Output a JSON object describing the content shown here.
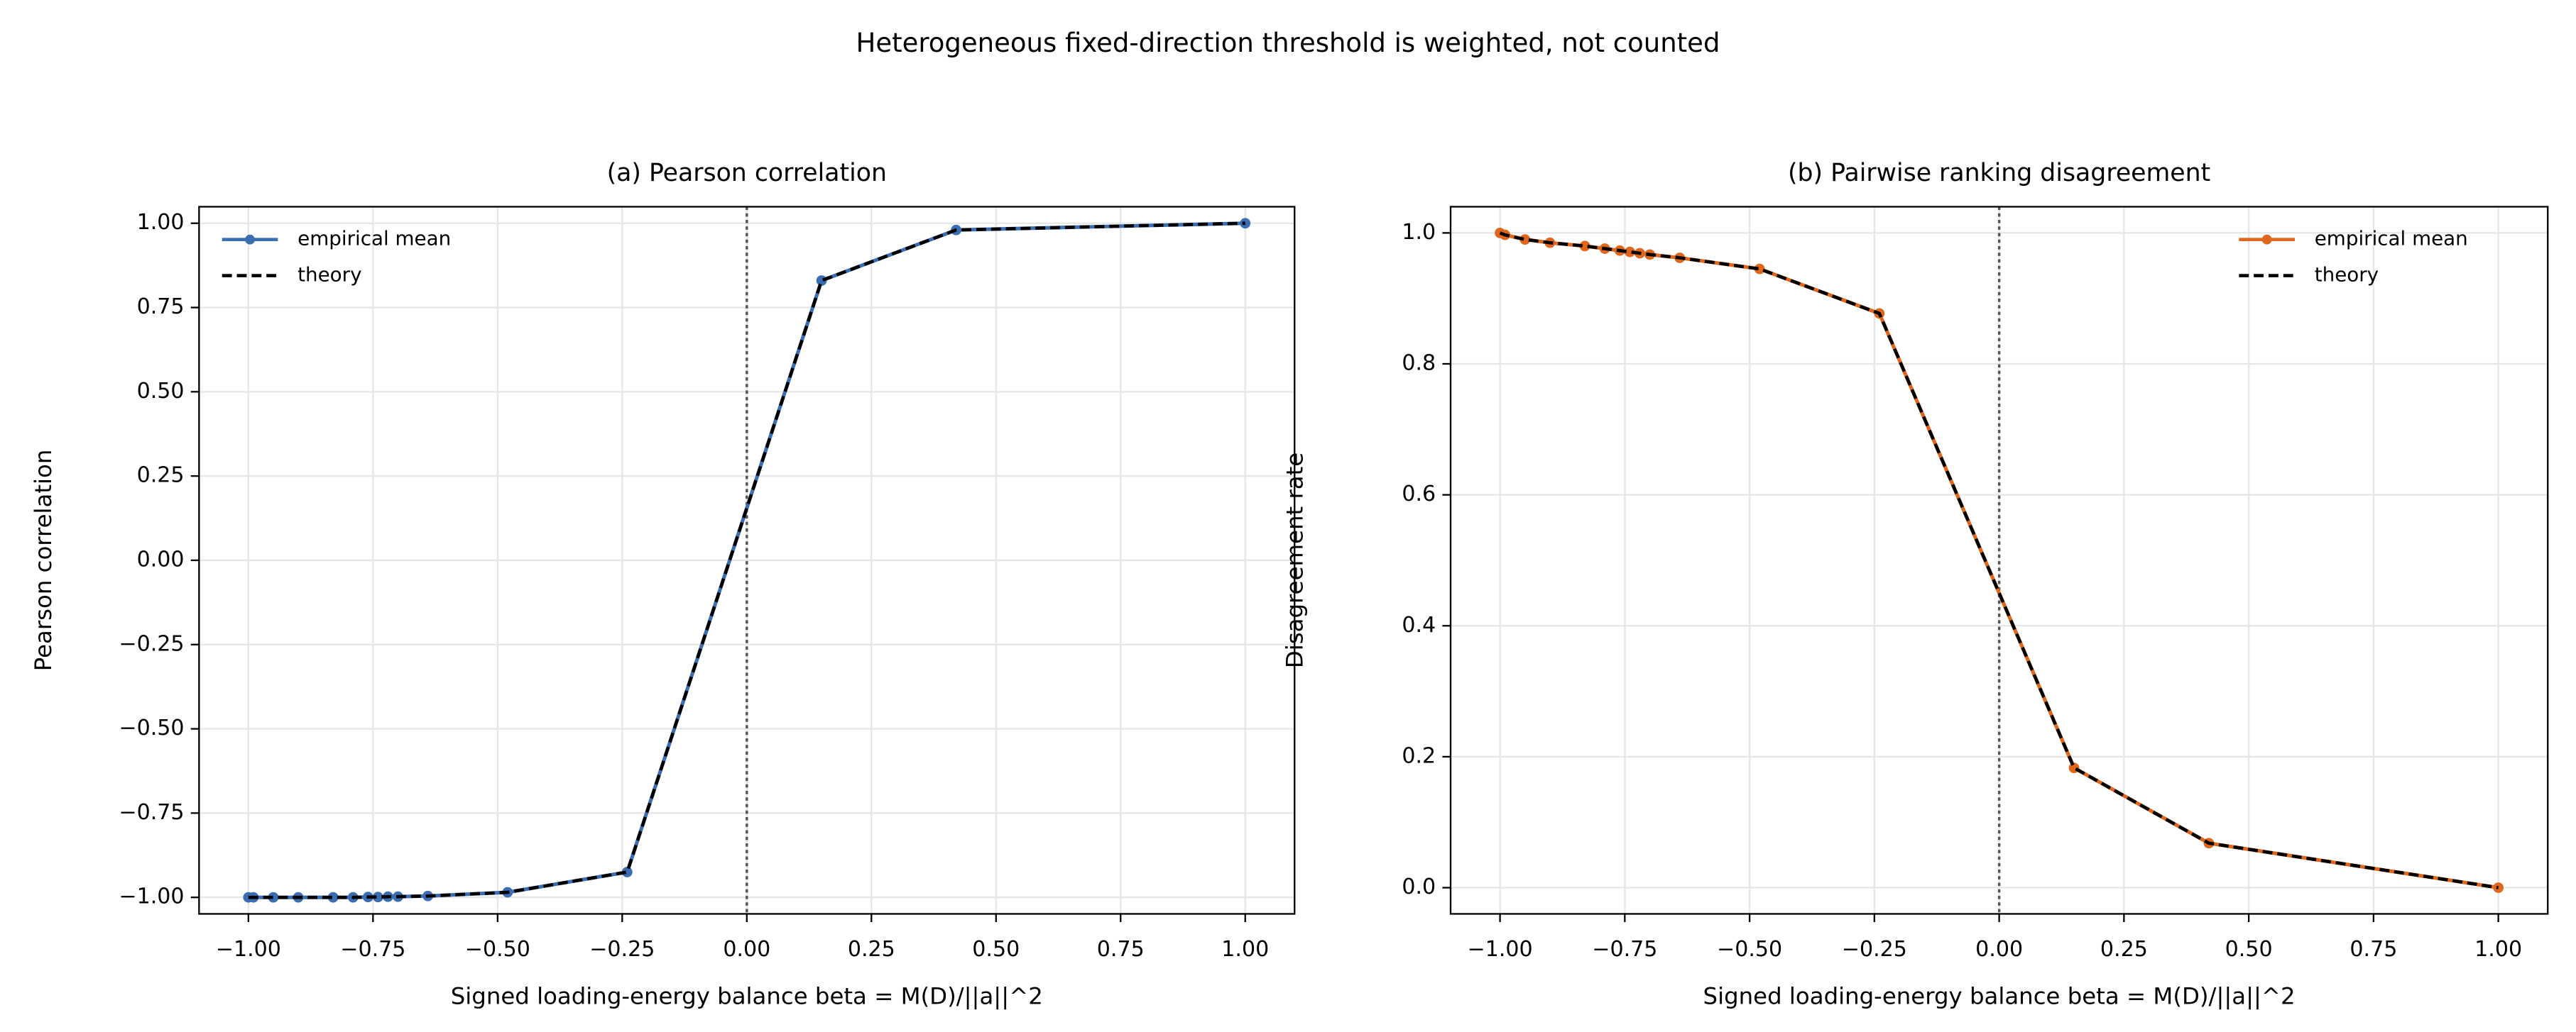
{
  "title": "Heterogeneous fixed-direction threshold is weighted, not counted",
  "chart_data": [
    {
      "type": "line",
      "title": "(a) Pearson correlation",
      "xlabel": "Signed loading-energy balance beta = M(D)/||a||^2",
      "ylabel": "Pearson correlation",
      "x": [
        -1.0,
        -0.99,
        -0.95,
        -0.9,
        -0.83,
        -0.79,
        -0.76,
        -0.74,
        -0.72,
        -0.7,
        -0.64,
        -0.48,
        -0.24,
        0.15,
        0.42,
        1.0
      ],
      "series": [
        {
          "name": "empirical mean",
          "color": "#3b6db3",
          "marker": true,
          "dash": false,
          "values": [
            -1.0,
            -1.0,
            -1.0,
            -1.0,
            -1.0,
            -1.0,
            -0.999,
            -0.999,
            -0.998,
            -0.998,
            -0.996,
            -0.985,
            -0.925,
            0.83,
            0.98,
            1.0
          ]
        },
        {
          "name": "theory",
          "color": "#000000",
          "marker": false,
          "dash": true,
          "values": [
            -1.0,
            -1.0,
            -1.0,
            -1.0,
            -1.0,
            -1.0,
            -0.999,
            -0.999,
            -0.998,
            -0.998,
            -0.996,
            -0.985,
            -0.925,
            0.83,
            0.98,
            1.0
          ]
        }
      ],
      "xlim": [
        -1.099,
        1.099
      ],
      "ylim": [
        -1.049,
        1.049
      ],
      "xticks": [
        {
          "value": -1,
          "label": "−1.00"
        },
        {
          "value": -0.75,
          "label": "−0.75"
        },
        {
          "value": -0.5,
          "label": "−0.50"
        },
        {
          "value": -0.25,
          "label": "−0.25"
        },
        {
          "value": 0,
          "label": "0.00"
        },
        {
          "value": 0.25,
          "label": "0.25"
        },
        {
          "value": 0.5,
          "label": "0.50"
        },
        {
          "value": 0.75,
          "label": "0.75"
        },
        {
          "value": 1,
          "label": "1.00"
        }
      ],
      "yticks": [
        {
          "value": -1,
          "label": "−1.00"
        },
        {
          "value": -0.75,
          "label": "−0.75"
        },
        {
          "value": -0.5,
          "label": "−0.50"
        },
        {
          "value": -0.25,
          "label": "−0.25"
        },
        {
          "value": 0,
          "label": "0.00"
        },
        {
          "value": 0.25,
          "label": "0.25"
        },
        {
          "value": 0.5,
          "label": "0.50"
        },
        {
          "value": 0.75,
          "label": "0.75"
        },
        {
          "value": 1,
          "label": "1.00"
        }
      ],
      "reference_x": 0,
      "grid": true,
      "legend": "upper left"
    },
    {
      "type": "line",
      "title": "(b) Pairwise ranking disagreement",
      "xlabel": "Signed loading-energy balance beta = M(D)/||a||^2",
      "ylabel": "Disagreement rate",
      "x": [
        -1.0,
        -0.99,
        -0.95,
        -0.9,
        -0.83,
        -0.79,
        -0.76,
        -0.74,
        -0.72,
        -0.7,
        -0.64,
        -0.48,
        -0.24,
        0.15,
        0.42,
        1.0
      ],
      "series": [
        {
          "name": "empirical mean",
          "color": "#e0661c",
          "marker": true,
          "dash": false,
          "values": [
            1.0,
            0.997,
            0.99,
            0.985,
            0.98,
            0.976,
            0.973,
            0.971,
            0.969,
            0.967,
            0.962,
            0.945,
            0.877,
            0.183,
            0.068,
            0.0
          ]
        },
        {
          "name": "theory",
          "color": "#000000",
          "marker": false,
          "dash": true,
          "values": [
            1.0,
            0.997,
            0.99,
            0.985,
            0.98,
            0.976,
            0.973,
            0.971,
            0.969,
            0.967,
            0.962,
            0.945,
            0.877,
            0.183,
            0.068,
            0.0
          ]
        }
      ],
      "xlim": [
        -1.099,
        1.099
      ],
      "ylim": [
        -0.04,
        1.04
      ],
      "xticks": [
        {
          "value": -1,
          "label": "−1.00"
        },
        {
          "value": -0.75,
          "label": "−0.75"
        },
        {
          "value": -0.5,
          "label": "−0.50"
        },
        {
          "value": -0.25,
          "label": "−0.25"
        },
        {
          "value": 0,
          "label": "0.00"
        },
        {
          "value": 0.25,
          "label": "0.25"
        },
        {
          "value": 0.5,
          "label": "0.50"
        },
        {
          "value": 0.75,
          "label": "0.75"
        },
        {
          "value": 1,
          "label": "1.00"
        }
      ],
      "yticks": [
        {
          "value": 0,
          "label": "0.0"
        },
        {
          "value": 0.2,
          "label": "0.2"
        },
        {
          "value": 0.4,
          "label": "0.4"
        },
        {
          "value": 0.6,
          "label": "0.6"
        },
        {
          "value": 0.8,
          "label": "0.8"
        },
        {
          "value": 1,
          "label": "1.0"
        }
      ],
      "reference_x": 0,
      "grid": true,
      "legend": "upper right"
    }
  ]
}
